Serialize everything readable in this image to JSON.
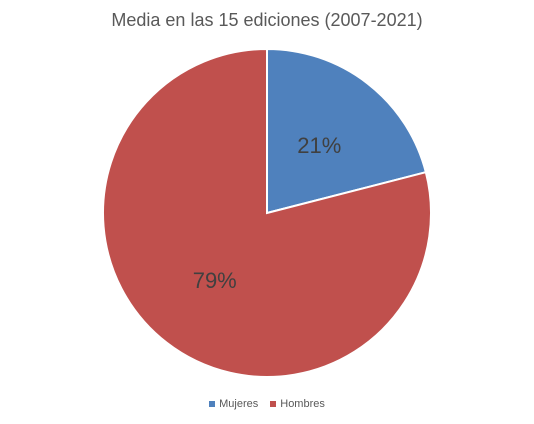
{
  "chart_data": {
    "type": "pie",
    "title": "Media en las 15 ediciones (2007-2021)",
    "slices": [
      {
        "name": "Mujeres",
        "value": 21,
        "label": "21%",
        "color": "#4f81bd"
      },
      {
        "name": "Hombres",
        "value": 79,
        "label": "79%",
        "color": "#c0504d"
      }
    ],
    "legend_position": "bottom"
  }
}
